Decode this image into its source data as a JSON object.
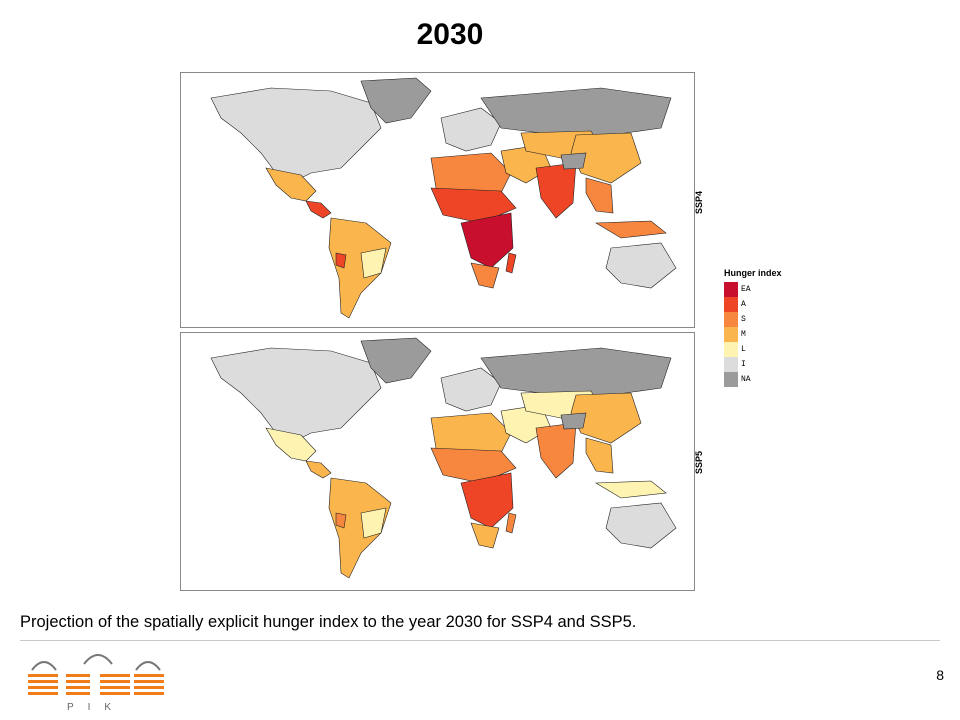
{
  "title": "2030",
  "panels": [
    {
      "id": "ssp4",
      "scenario": "SSP4"
    },
    {
      "id": "ssp5",
      "scenario": "SSP5"
    }
  ],
  "legend": {
    "title": "Hunger index",
    "items": [
      {
        "label": "EA",
        "color": "#c8102e"
      },
      {
        "label": "A",
        "color": "#ef4527"
      },
      {
        "label": "S",
        "color": "#f7863f"
      },
      {
        "label": "M",
        "color": "#fbb54d"
      },
      {
        "label": "L",
        "color": "#fef3b0"
      },
      {
        "label": "I",
        "color": "#dcdcdc"
      },
      {
        "label": "NA",
        "color": "#9b9b9b"
      }
    ]
  },
  "caption": "Projection of the spatially explicit hunger index to the year 2030 for SSP4 and SSP5.",
  "page_number": "8",
  "logo": {
    "text": "PIK",
    "color": "#f07d1a"
  }
}
